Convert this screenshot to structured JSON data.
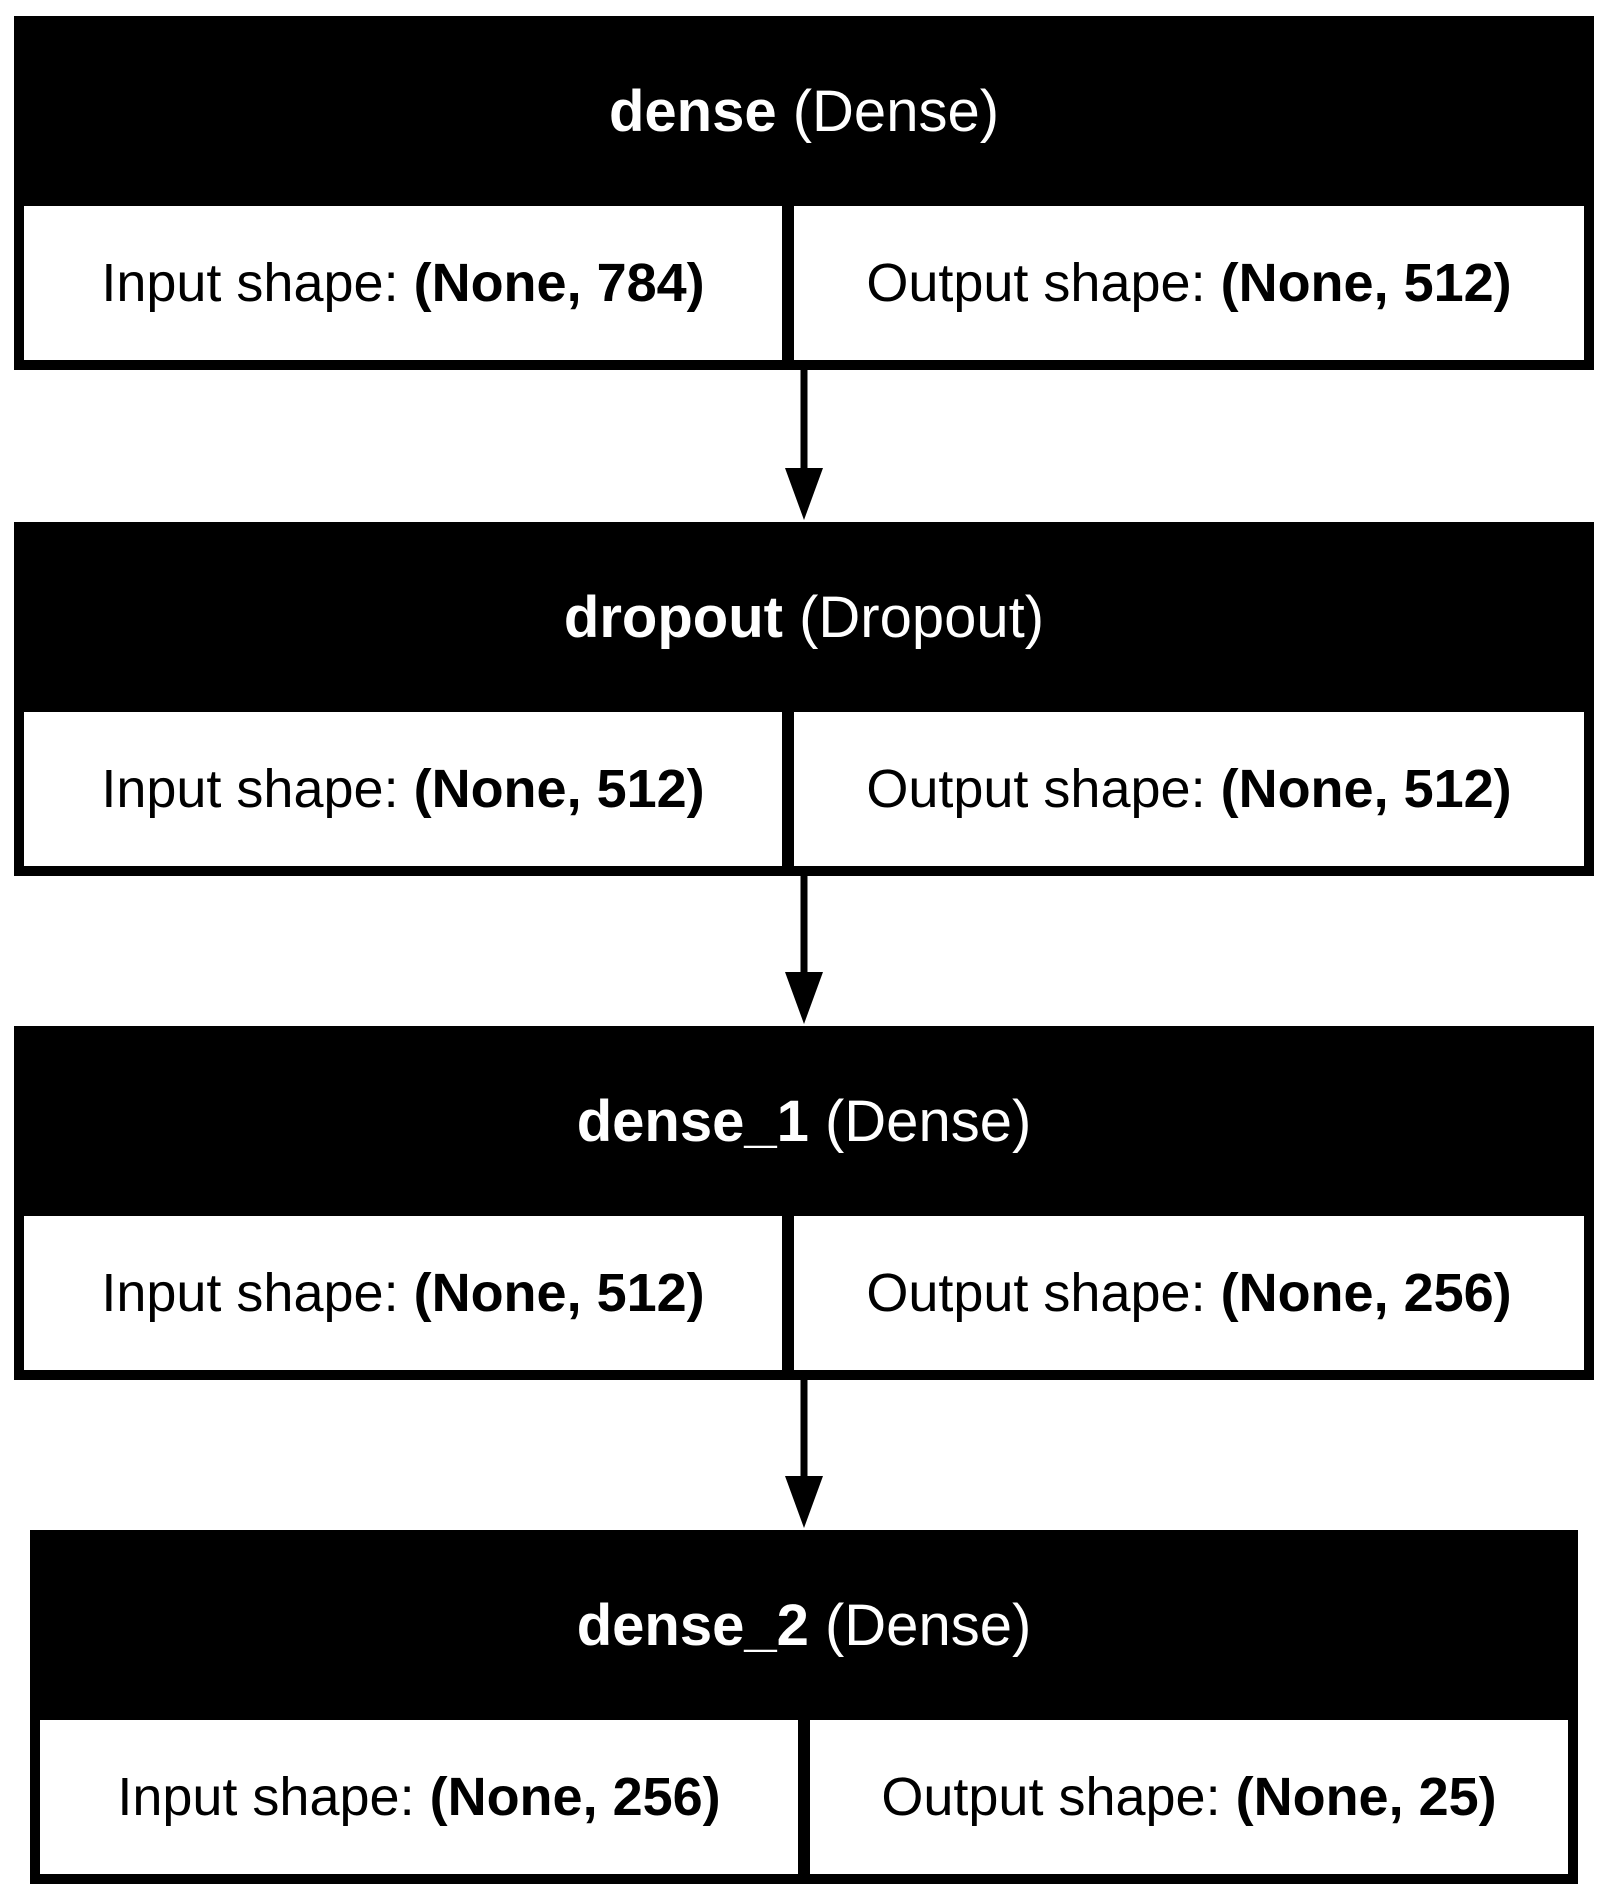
{
  "diagram": {
    "layers": [
      {
        "name": "dense",
        "type": "(Dense)",
        "input_label": "Input shape: ",
        "input_value": "(None, 784)",
        "output_label": "Output shape: ",
        "output_value": "(None, 512)"
      },
      {
        "name": "dropout",
        "type": "(Dropout)",
        "input_label": "Input shape: ",
        "input_value": "(None, 512)",
        "output_label": "Output shape: ",
        "output_value": "(None, 512)"
      },
      {
        "name": "dense_1",
        "type": "(Dense)",
        "input_label": "Input shape: ",
        "input_value": "(None, 512)",
        "output_label": "Output shape: ",
        "output_value": "(None, 256)"
      },
      {
        "name": "dense_2",
        "type": "(Dense)",
        "input_label": "Input shape: ",
        "input_value": "(None, 256)",
        "output_label": "Output shape: ",
        "output_value": "(None, 25)"
      }
    ],
    "edges": [
      {
        "from": "dense",
        "to": "dropout"
      },
      {
        "from": "dropout",
        "to": "dense_1"
      },
      {
        "from": "dense_1",
        "to": "dense_2"
      }
    ],
    "colors": {
      "header_bg": "#000000",
      "header_text": "#ffffff",
      "cell_bg": "#ffffff",
      "arrow": "#000000"
    }
  }
}
